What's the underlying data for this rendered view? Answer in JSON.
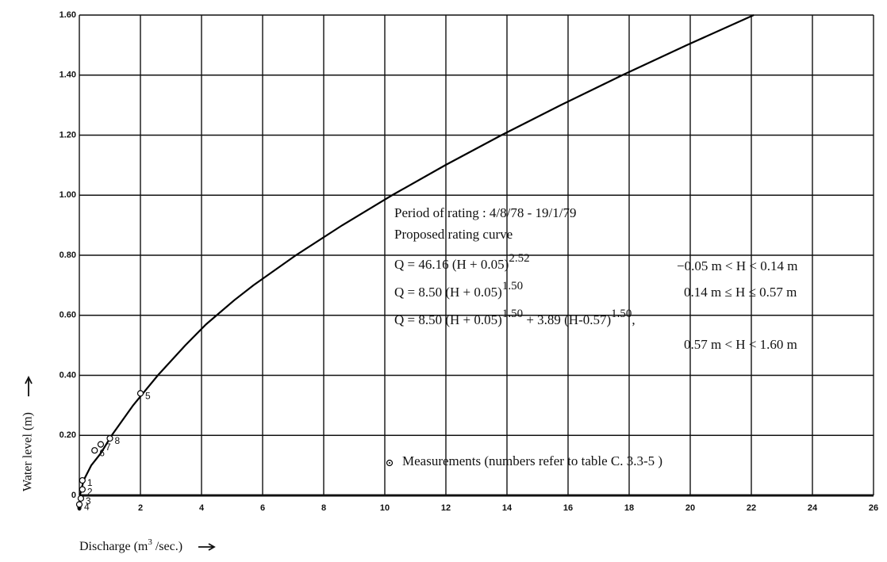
{
  "chart_data": {
    "type": "line",
    "xlabel": [
      "Discharge (m",
      "3",
      " /sec.)"
    ],
    "ylabel": "Water level (m)",
    "xlim": [
      0,
      26
    ],
    "ylim": [
      0,
      1.6
    ],
    "xticks": [
      0,
      2,
      4,
      6,
      8,
      10,
      12,
      14,
      16,
      18,
      20,
      22,
      24,
      26
    ],
    "yticks": [
      0,
      {
        "value": 0.2,
        "label": "0.20"
      },
      {
        "value": 0.4,
        "label": "0.40"
      },
      {
        "value": 0.6,
        "label": "0.60"
      },
      {
        "value": 0.8,
        "label": "0.80"
      },
      {
        "value": 1.0,
        "label": "1.00"
      },
      {
        "value": 1.2,
        "label": "1.20"
      },
      {
        "value": 1.4,
        "label": "1.40"
      },
      {
        "value": 1.6,
        "label": "1.60"
      }
    ],
    "grid": true,
    "series": [
      {
        "type": "line",
        "color": "#000000",
        "x": [
          0,
          0.02,
          0.14,
          0.39,
          0.7,
          1.06,
          1.76,
          2.57,
          3.47,
          4.15,
          5.07,
          5.7,
          7.09,
          8.61,
          10.24,
          11.98,
          13.82,
          15.76,
          17.78,
          19.89,
          22.08
        ],
        "values": [
          -0.05,
          0,
          0.05,
          0.1,
          0.14,
          0.2,
          0.3,
          0.4,
          0.5,
          0.57,
          0.65,
          0.7,
          0.8,
          0.9,
          1.0,
          1.1,
          1.2,
          1.3,
          1.4,
          1.5,
          1.6
        ]
      },
      {
        "type": "scatter",
        "color": "#000000",
        "name": "Measurements (numbers refer to table C. 3.3-5 )",
        "x": [
          0.1,
          0.1,
          0.05,
          0,
          2.0,
          0.5,
          0.7,
          1.0
        ],
        "values": [
          0.05,
          0.02,
          -0.01,
          -0.03,
          0.34,
          0.15,
          0.17,
          0.19
        ],
        "labels": [
          "1",
          "2",
          "3",
          "4",
          "5",
          "6",
          "7",
          "8"
        ]
      }
    ],
    "annotations": [
      [
        "Period of rating   :  4/8/78 - 19/1/79"
      ],
      [
        "Proposed rating curve"
      ],
      [
        "Q = 46.16 (H + 0.05)",
        "2.52"
      ],
      [
        "Q = 8.50 (H + 0.05)",
        "1.50"
      ],
      [
        "Q = 8.50 (H + 0.05)",
        "1.50",
        " + 3.89 (H-0.57)",
        "1.50",
        ","
      ]
    ],
    "ranges": [
      "−0.05 m < H < 0.14 m",
      "0.14 m ≤ H ≤ 0.57 m",
      "0.57 m < H < 1.60 m"
    ]
  }
}
